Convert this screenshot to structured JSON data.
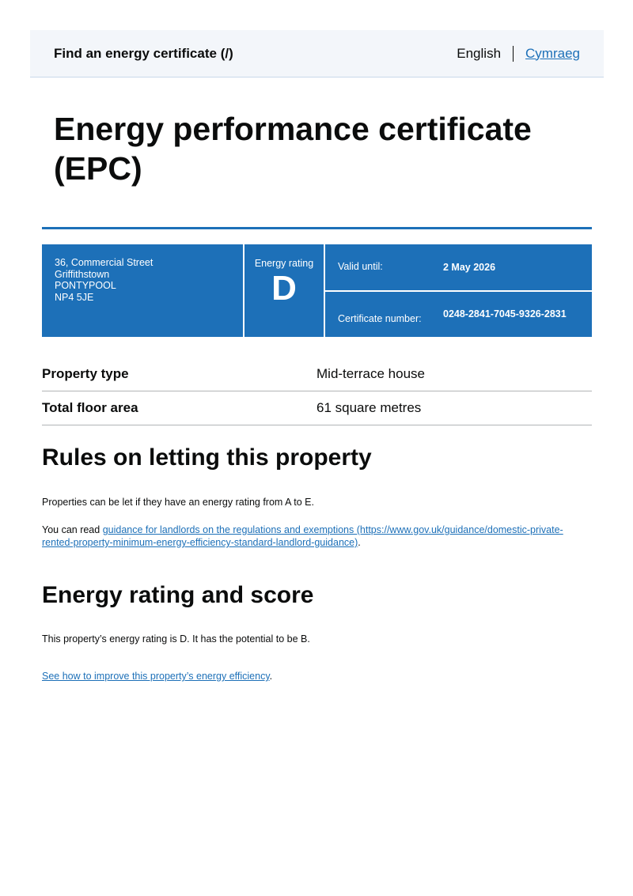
{
  "header": {
    "brand": "Find an energy certificate",
    "brand_suffix": "(/)",
    "lang_current": "English",
    "lang_other": "Cymraeg"
  },
  "title": "Energy performance certificate (EPC)",
  "summary": {
    "address": [
      "36, Commercial Street",
      "Griffithstown",
      "PONTYPOOL",
      "NP4 5JE"
    ],
    "rating_label": "Energy rating",
    "rating": "D",
    "valid_label": "Valid until:",
    "valid_value": "2 May 2026",
    "cert_label": "Certificate number:",
    "cert_value": "0248-2841-7045-9326-2831"
  },
  "details": [
    {
      "key": "Property type",
      "value": "Mid-terrace house"
    },
    {
      "key": "Total floor area",
      "value": "61 square metres"
    }
  ],
  "letting": {
    "heading": "Rules on letting this property",
    "p1": "Properties can be let if they have an energy rating from A to E.",
    "p2_prefix": "You can read ",
    "p2_link": "guidance for landlords on the regulations and exemptions (https://www.gov.uk/guidance/domestic-private-rented-property-minimum-energy-efficiency-standard-landlord-guidance)",
    "p2_suffix": "."
  },
  "score": {
    "heading": "Energy rating and score",
    "p1": "This property’s energy rating is D. It has the potential to be B.",
    "link": "See how to improve this property’s energy efficiency",
    "link_suffix": "."
  },
  "colors": {
    "accent": "#1d70b8"
  }
}
